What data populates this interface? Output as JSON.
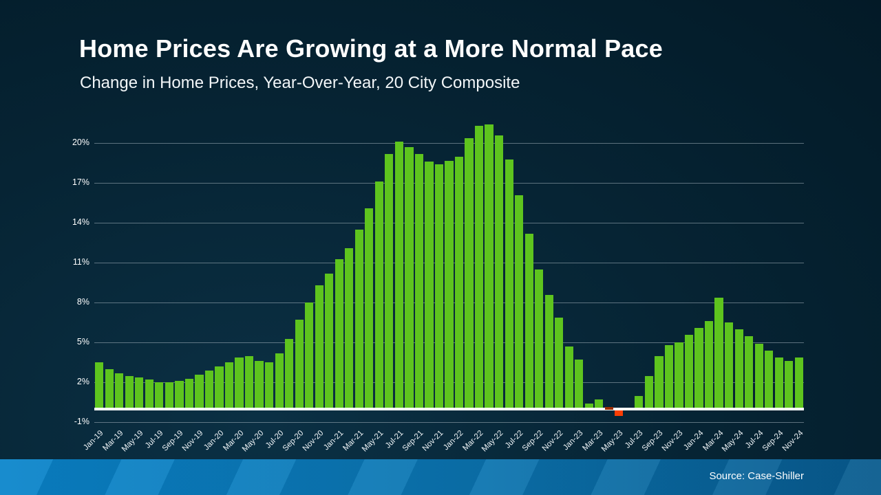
{
  "header": {
    "title": "Home Prices Are Growing at a More Normal Pace",
    "subtitle": "Change in Home Prices, Year-Over-Year, 20 City Composite"
  },
  "footer": {
    "source_label": "Source: Case-Shiller"
  },
  "colors": {
    "background": "#062434",
    "bar_positive": "#5ec41e",
    "bar_negative": "#fb3e04",
    "bar_negative_dash": "#9c2e03",
    "gridline": "rgba(165,180,190,0.55)",
    "baseline": "#ffffff",
    "text": "#ffffff",
    "bottom_band": "#0a85cb"
  },
  "chart_data": {
    "type": "bar",
    "title": "Home Prices Are Growing at a More Normal Pace",
    "subtitle": "Change in Home Prices, Year-Over-Year, 20 City Composite",
    "xlabel": "",
    "ylabel": "",
    "ylim": [
      -1,
      22
    ],
    "grid": "horizontal",
    "legend_position": "none",
    "ytick_values": [
      20,
      17,
      14,
      11,
      8,
      5,
      2,
      -1
    ],
    "ytick_labels": [
      "20%",
      "17%",
      "14%",
      "11%",
      "8%",
      "5%",
      "2%",
      "-1%"
    ],
    "xtick_shown_every": 2,
    "categories": [
      "Jan-19",
      "Feb-19",
      "Mar-19",
      "Apr-19",
      "May-19",
      "Jun-19",
      "Jul-19",
      "Aug-19",
      "Sep-19",
      "Oct-19",
      "Nov-19",
      "Dec-19",
      "Jan-20",
      "Feb-20",
      "Mar-20",
      "Apr-20",
      "May-20",
      "Jun-20",
      "Jul-20",
      "Aug-20",
      "Sep-20",
      "Oct-20",
      "Nov-20",
      "Dec-20",
      "Jan-21",
      "Feb-21",
      "Mar-21",
      "Apr-21",
      "May-21",
      "Jun-21",
      "Jul-21",
      "Aug-21",
      "Sep-21",
      "Oct-21",
      "Nov-21",
      "Dec-21",
      "Jan-22",
      "Feb-22",
      "Mar-22",
      "Apr-22",
      "May-22",
      "Jun-22",
      "Jul-22",
      "Aug-22",
      "Sep-22",
      "Oct-22",
      "Nov-22",
      "Dec-22",
      "Jan-23",
      "Feb-23",
      "Mar-23",
      "Apr-23",
      "May-23",
      "Jun-23",
      "Jul-23",
      "Aug-23",
      "Sep-23",
      "Oct-23",
      "Nov-23",
      "Dec-23",
      "Jan-24",
      "Feb-24",
      "Mar-24",
      "Apr-24",
      "May-24",
      "Jun-24",
      "Jul-24",
      "Aug-24",
      "Sep-24",
      "Oct-24",
      "Nov-24"
    ],
    "values": [
      3.5,
      3.0,
      2.7,
      2.5,
      2.4,
      2.2,
      2.0,
      2.0,
      2.1,
      2.3,
      2.6,
      2.9,
      3.2,
      3.5,
      3.9,
      4.0,
      3.6,
      3.5,
      4.2,
      5.3,
      6.7,
      8.0,
      9.3,
      10.2,
      11.3,
      12.1,
      13.5,
      15.1,
      17.1,
      19.2,
      20.1,
      19.7,
      19.2,
      18.6,
      18.4,
      18.7,
      19.0,
      20.4,
      21.3,
      21.4,
      20.6,
      18.8,
      16.1,
      13.2,
      10.5,
      8.6,
      6.9,
      4.7,
      3.7,
      0.4,
      0.7,
      -0.1,
      -0.4,
      0.0,
      1.0,
      2.5,
      4.0,
      4.8,
      5.0,
      5.6,
      6.1,
      6.6,
      8.4,
      6.5,
      6.0,
      5.5,
      4.9,
      4.4,
      3.9,
      3.6,
      3.9
    ]
  }
}
